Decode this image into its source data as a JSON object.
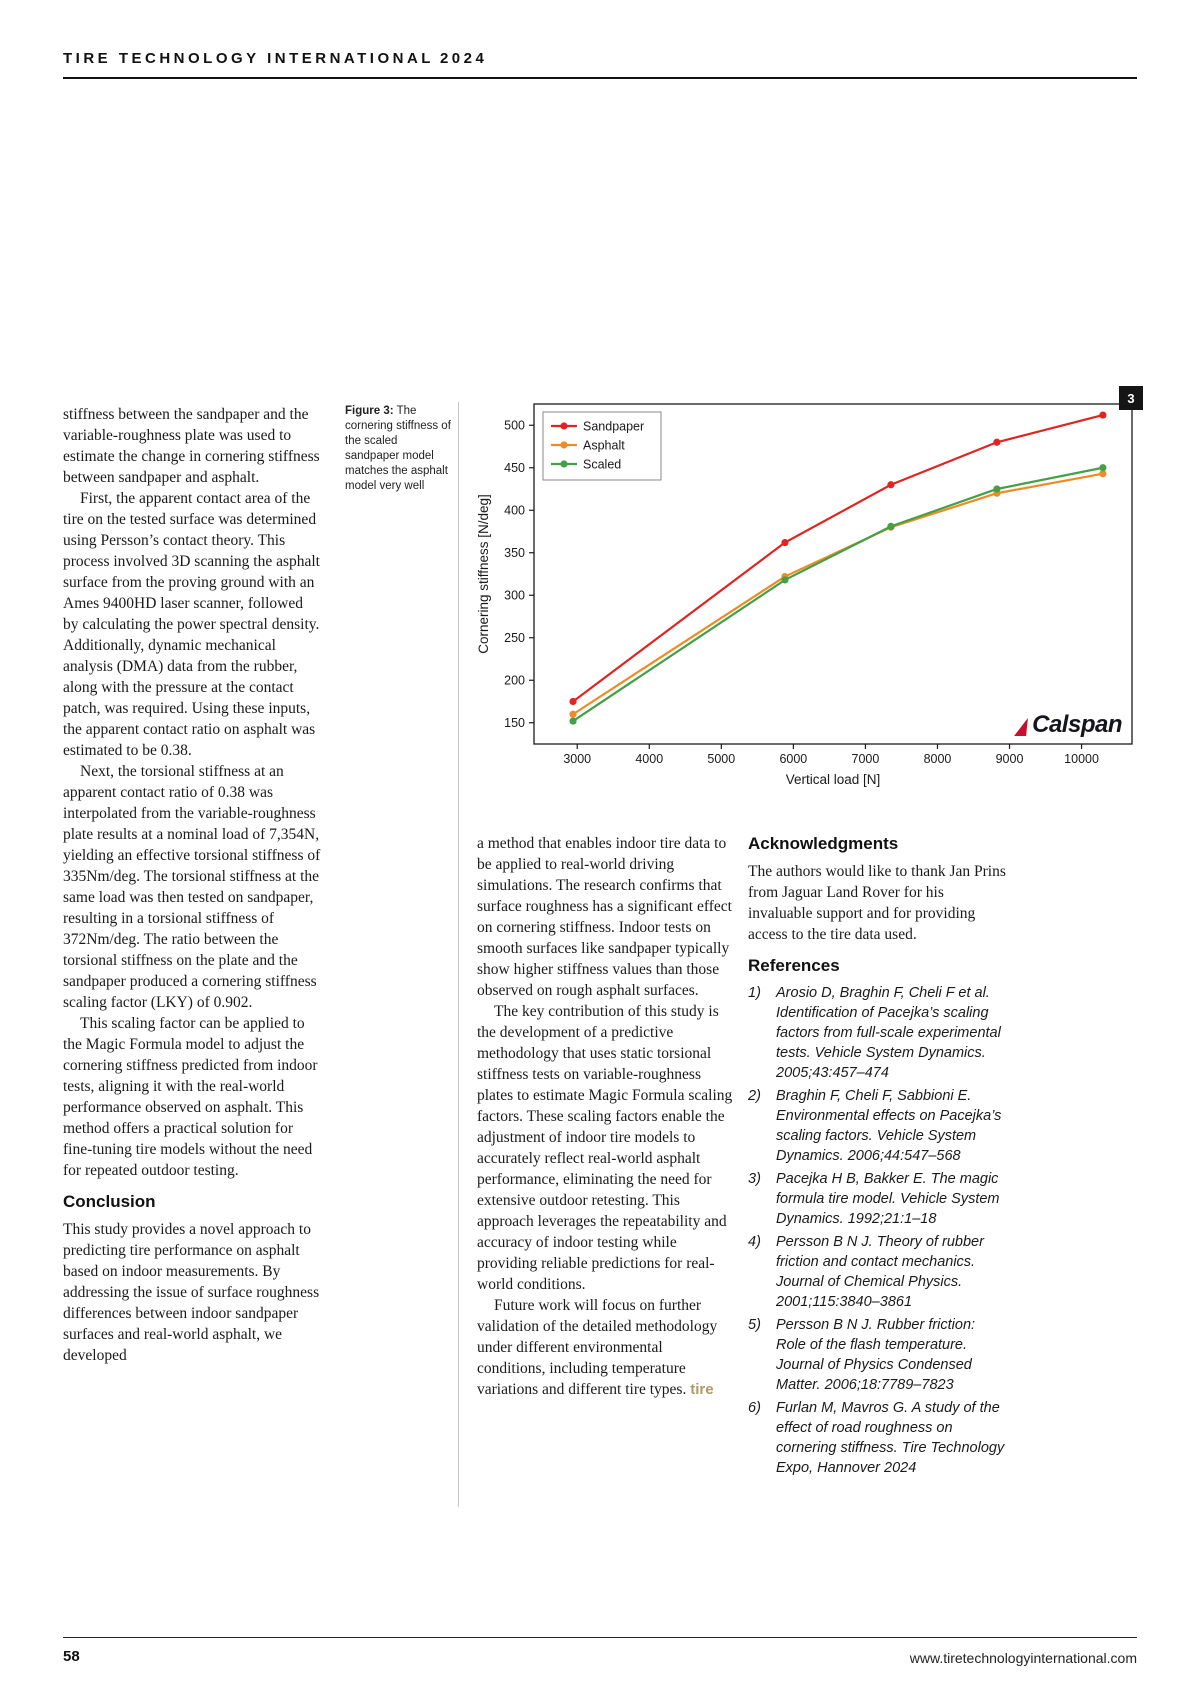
{
  "header": {
    "title": "TIRE TECHNOLOGY INTERNATIONAL",
    "year": "2024"
  },
  "page_badge": "3",
  "figure_caption": {
    "label": "Figure 3:",
    "text": "The cornering stiffness of the scaled sandpaper model matches the asphalt model very well"
  },
  "chart_data": {
    "type": "line",
    "title": "",
    "xlabel": "Vertical load [N]",
    "ylabel": "Cornering stiffness [N/deg]",
    "xlim": [
      2400,
      10700
    ],
    "ylim": [
      125,
      525
    ],
    "x_ticks": [
      3000,
      4000,
      5000,
      6000,
      7000,
      8000,
      9000,
      10000
    ],
    "y_ticks": [
      150,
      200,
      250,
      300,
      350,
      400,
      450,
      500
    ],
    "x": [
      2942,
      5883,
      7354,
      8825,
      10296
    ],
    "series": [
      {
        "name": "Sandpaper",
        "color": "#e02421",
        "values": [
          175,
          362,
          430,
          480,
          512
        ]
      },
      {
        "name": "Asphalt",
        "color": "#ef8b22",
        "values": [
          160,
          322,
          380,
          420,
          443
        ]
      },
      {
        "name": "Scaled",
        "color": "#43a047",
        "values": [
          152,
          318,
          381,
          425,
          450
        ]
      }
    ],
    "legend_position": "upper left",
    "grid": false,
    "watermark": "Calspan"
  },
  "left_column": {
    "paragraphs": [
      "stiffness between the sandpaper and the variable-roughness plate was used to estimate the change in cornering stiffness between sandpaper and asphalt.",
      "First, the apparent contact area of the tire on the tested surface was determined using Persson’s contact theory. This process involved 3D scanning the asphalt surface from the proving ground with an Ames 9400HD laser scanner, followed by calculating the power spectral density. Additionally, dynamic mechanical analysis (DMA) data from the rubber, along with the pressure at the contact patch, was required. Using these inputs, the apparent contact ratio on asphalt was estimated to be 0.38.",
      "Next, the torsional stiffness at an apparent contact ratio of 0.38 was interpolated from the variable-roughness plate results at a nominal load of 7,354N, yielding an effective torsional stiffness of 335Nm/deg. The torsional stiffness at the same load was then tested on sandpaper, resulting in a torsional stiffness of 372Nm/deg. The ratio between the torsional stiffness on the plate and the sandpaper produced a cornering stiffness scaling factor (LKY) of 0.902.",
      "This scaling factor can be applied to the Magic Formula model to adjust the cornering stiffness predicted from indoor tests, aligning it with the real-world performance observed on asphalt. This method offers a practical solution for fine-tuning tire models without the need for repeated outdoor testing."
    ],
    "heading": "Conclusion",
    "closing_paragraphs": [
      "This study provides a novel approach to predicting tire performance on asphalt based on indoor measurements. By addressing the issue of surface roughness differences between indoor sandpaper surfaces and real-world asphalt, we developed"
    ]
  },
  "middle_column": {
    "paragraphs": [
      "a method that enables indoor tire data to be applied to real-world driving simulations. The research confirms that surface roughness has a significant effect on cornering stiffness. Indoor tests on smooth surfaces like sandpaper typically show higher stiffness values than those observed on rough asphalt surfaces.",
      "The key contribution of this study is the development of a predictive methodology that uses static torsional stiffness tests on variable-roughness plates to estimate Magic Formula scaling factors. These scaling factors enable the adjustment of indoor tire models to accurately reflect real-world asphalt performance, eliminating the need for extensive outdoor retesting. This approach leverages the repeatability and accuracy of indoor testing while providing reliable predictions for real-world conditions.",
      "Future work will focus on further validation of the detailed methodology under different environmental conditions, including temperature variations and different tire types."
    ],
    "endmark": "tire"
  },
  "right_column": {
    "ack_heading": "Acknowledgments",
    "ack_text": "The authors would like to thank Jan Prins from Jaguar Land Rover for his invaluable support and for providing access to the tire data used.",
    "ref_heading": "References",
    "references": [
      {
        "num": "1)",
        "text": "Arosio D, Braghin F, Cheli F et al. Identification of Pacejka’s scaling factors from full-scale experimental tests. Vehicle System Dynamics. 2005;43:457–474"
      },
      {
        "num": "2)",
        "text": "Braghin F, Cheli F, Sabbioni E. Environmental effects on Pacejka’s scaling factors. Vehicle System Dynamics. 2006;44:547–568"
      },
      {
        "num": "3)",
        "text": "Pacejka H B, Bakker E. The magic formula tire model. Vehicle System Dynamics. 1992;21:1–18"
      },
      {
        "num": "4)",
        "text": "Persson B N J. Theory of rubber friction and contact mechanics. Journal of Chemical Physics. 2001;115:3840–3861"
      },
      {
        "num": "5)",
        "text": "Persson B N J. Rubber friction: Role of the flash temperature. Journal of Physics Condensed Matter. 2006;18:7789–7823"
      },
      {
        "num": "6)",
        "text": "Furlan M, Mavros G. A study of the effect of road roughness on cornering stiffness. Tire Technology Expo, Hannover 2024"
      }
    ]
  },
  "footer": {
    "page_number": "58",
    "url": "www.tiretechnologyinternational.com"
  }
}
